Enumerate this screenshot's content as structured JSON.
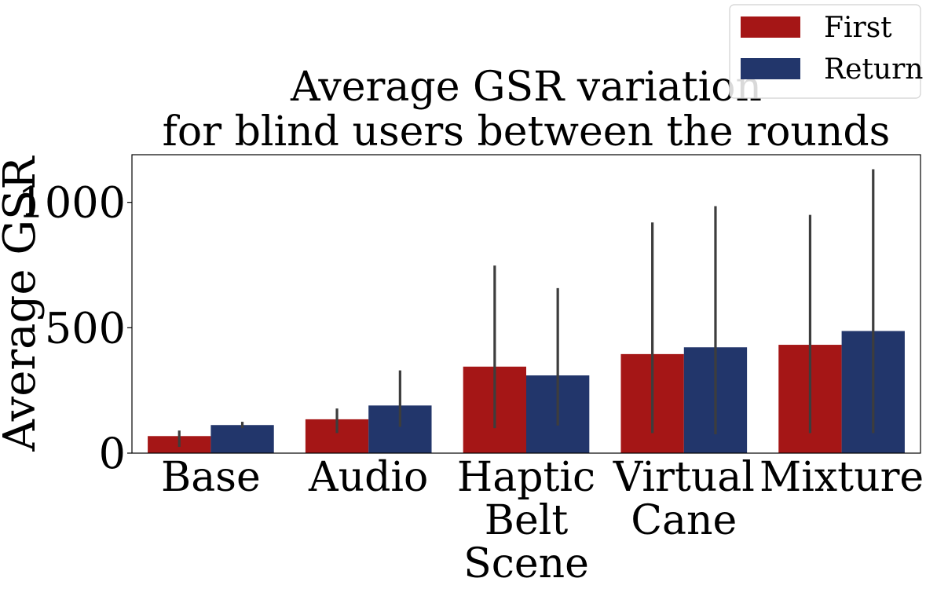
{
  "chart_data": {
    "type": "bar",
    "title": [
      "Average GSR variation",
      "for blind users between the rounds"
    ],
    "xlabel": "",
    "ylabel": "Average GSR",
    "ylim": [
      0,
      1190
    ],
    "yticks": [
      0,
      500,
      1000
    ],
    "categories": [
      [
        "Base"
      ],
      [
        "Audio"
      ],
      [
        "Haptic",
        "Belt",
        "Scene"
      ],
      [
        "Virtual",
        "Cane"
      ],
      [
        "Mixture"
      ]
    ],
    "series": [
      {
        "name": "First",
        "color": "#a51616",
        "values": [
          68,
          135,
          345,
          395,
          432
        ],
        "error_low": [
          25,
          80,
          100,
          80,
          80
        ],
        "error_high": [
          90,
          178,
          748,
          920,
          950
        ]
      },
      {
        "name": "Return",
        "color": "#22366b",
        "values": [
          112,
          190,
          310,
          422,
          487
        ],
        "error_low": [
          100,
          105,
          110,
          75,
          80
        ],
        "error_high": [
          125,
          330,
          658,
          985,
          1132
        ]
      }
    ],
    "error_bar_color": "#3d3d3d",
    "grid": false,
    "legend_position": "top-right"
  }
}
